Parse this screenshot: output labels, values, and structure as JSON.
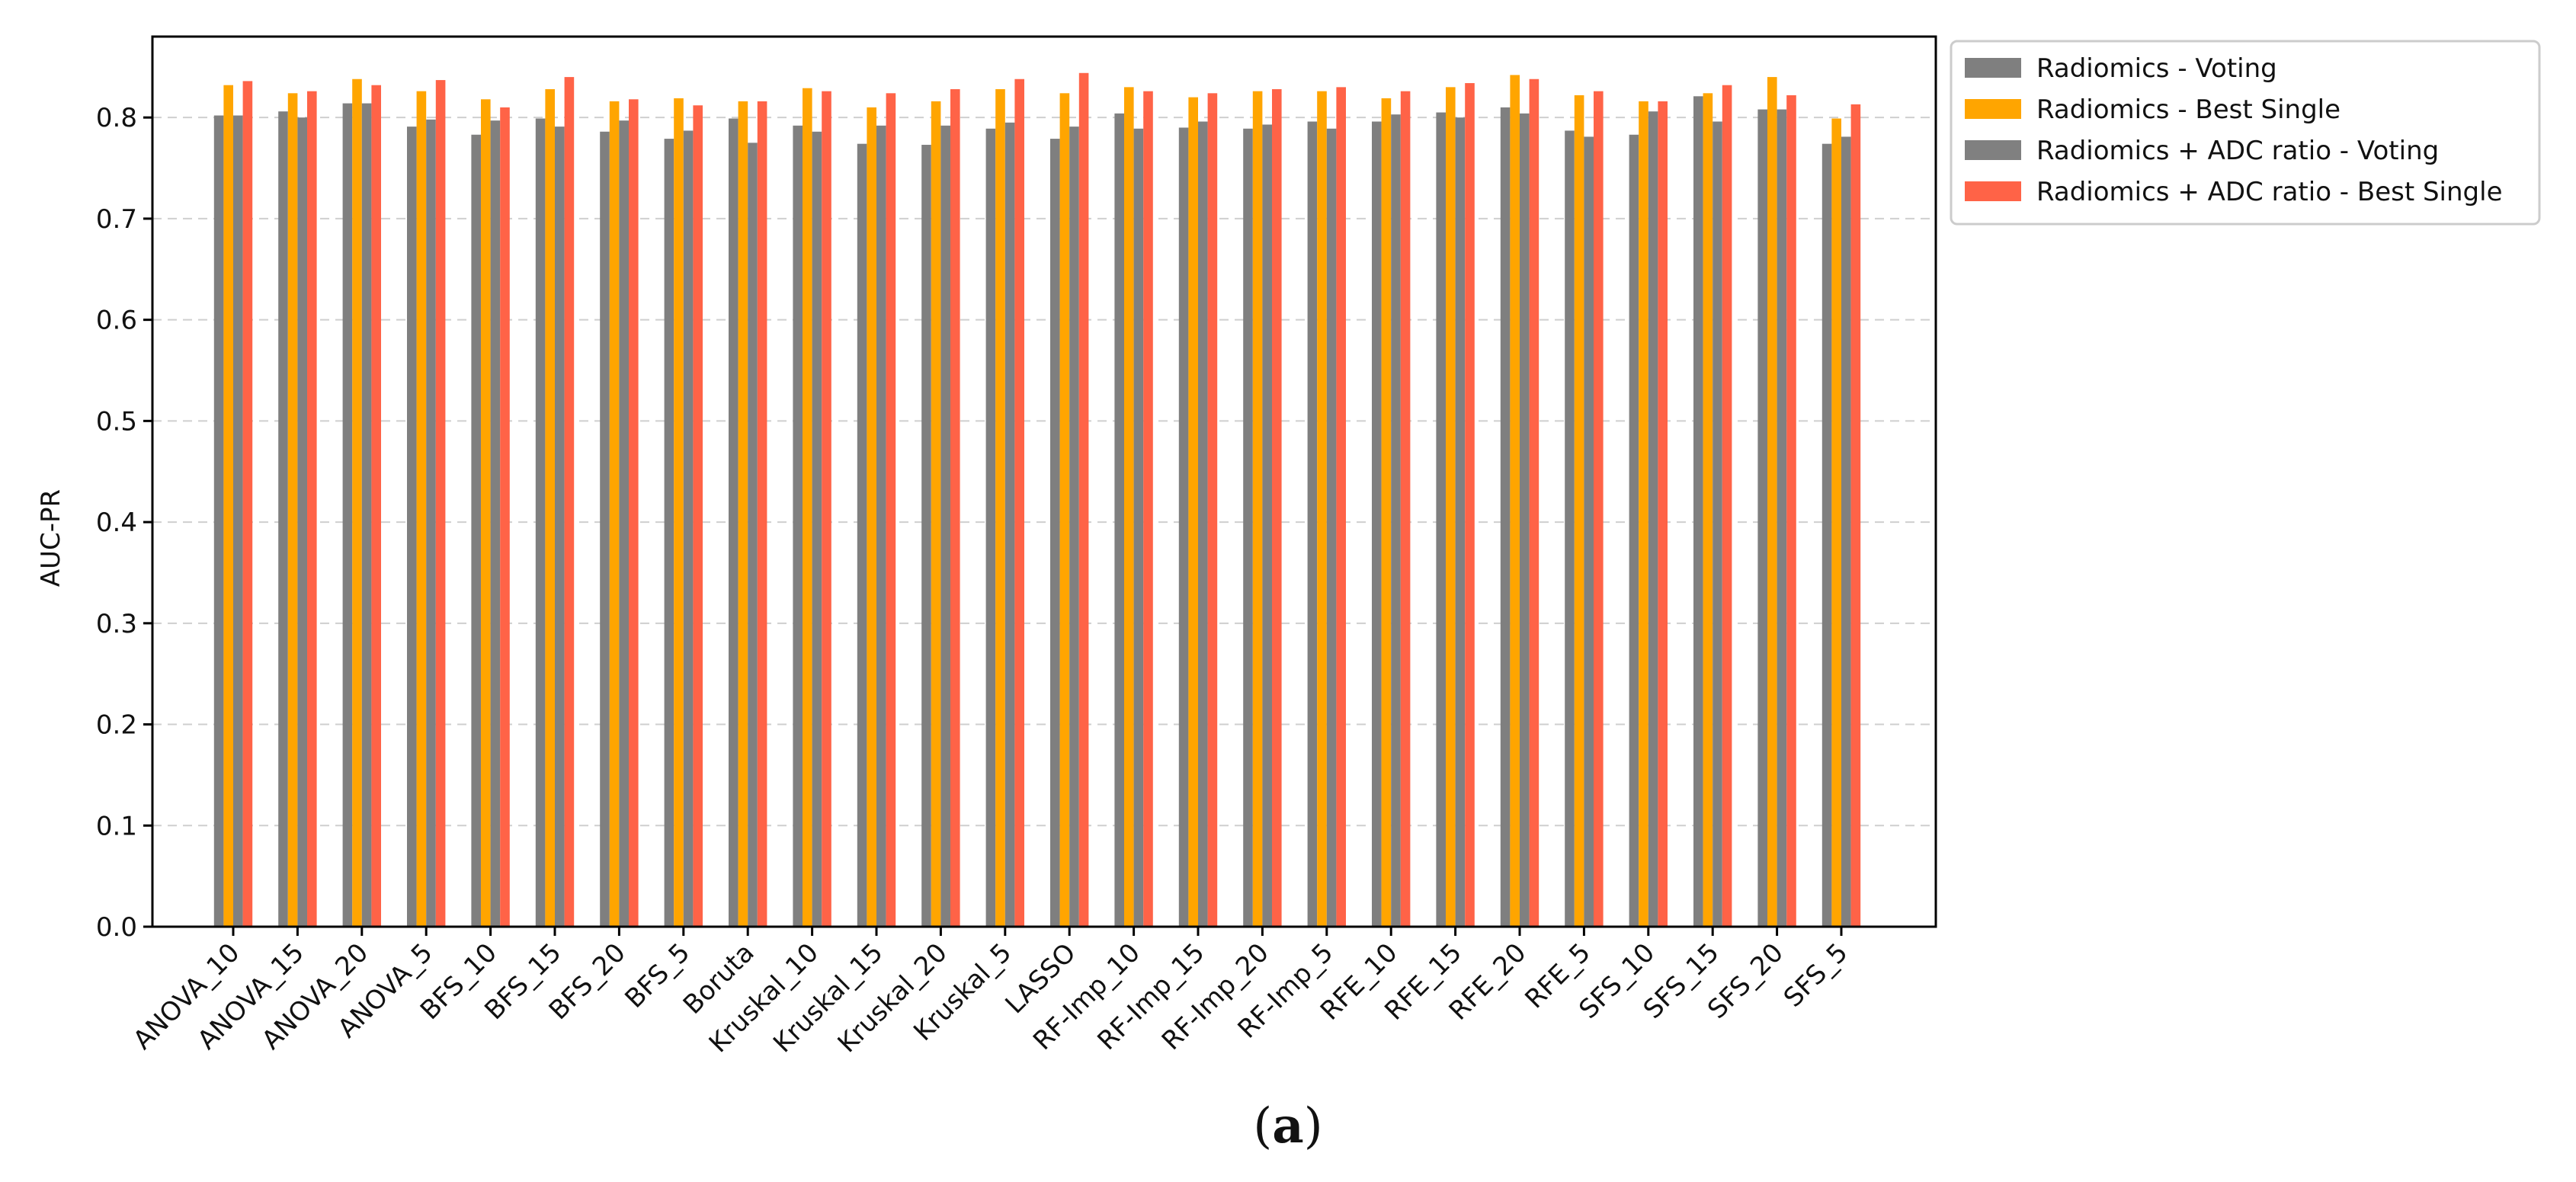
{
  "chart_data": {
    "type": "bar",
    "title": "",
    "xlabel": "",
    "ylabel": "AUC-PR",
    "ylim": [
      0,
      0.88
    ],
    "yticks": [
      "0.0",
      "0.1",
      "0.2",
      "0.3",
      "0.4",
      "0.5",
      "0.6",
      "0.7",
      "0.8"
    ],
    "grid": "horizontal dashed",
    "legend_position": "outside-top-right",
    "categories": [
      "ANOVA_10",
      "ANOVA_15",
      "ANOVA_20",
      "ANOVA_5",
      "BFS_10",
      "BFS_15",
      "BFS_20",
      "BFS_5",
      "Boruta",
      "Kruskal_10",
      "Kruskal_15",
      "Kruskal_20",
      "Kruskal_5",
      "LASSO",
      "RF-Imp_10",
      "RF-Imp_15",
      "RF-Imp_20",
      "RF-Imp_5",
      "RFE_10",
      "RFE_15",
      "RFE_20",
      "RFE_5",
      "SFS_10",
      "SFS_15",
      "SFS_20",
      "SFS_5"
    ],
    "series": [
      {
        "name": "Radiomics - Voting",
        "color": "#7f7f7f",
        "values": [
          0.802,
          0.806,
          0.814,
          0.791,
          0.783,
          0.799,
          0.786,
          0.779,
          0.799,
          0.792,
          0.774,
          0.773,
          0.789,
          0.779,
          0.804,
          0.79,
          0.789,
          0.796,
          0.796,
          0.805,
          0.81,
          0.787,
          0.783,
          0.821,
          0.808,
          0.774
        ]
      },
      {
        "name": "Radiomics - Best Single",
        "color": "#ffa500",
        "values": [
          0.832,
          0.824,
          0.838,
          0.826,
          0.818,
          0.828,
          0.816,
          0.819,
          0.816,
          0.829,
          0.81,
          0.816,
          0.828,
          0.824,
          0.83,
          0.82,
          0.826,
          0.826,
          0.819,
          0.83,
          0.842,
          0.822,
          0.816,
          0.824,
          0.84,
          0.799
        ]
      },
      {
        "name": "Radiomics + ADC ratio - Voting",
        "color": "#808080",
        "values": [
          0.802,
          0.8,
          0.814,
          0.798,
          0.797,
          0.791,
          0.797,
          0.787,
          0.775,
          0.786,
          0.792,
          0.792,
          0.795,
          0.791,
          0.789,
          0.796,
          0.793,
          0.789,
          0.803,
          0.8,
          0.804,
          0.781,
          0.806,
          0.796,
          0.808,
          0.781
        ]
      },
      {
        "name": "Radiomics + ADC ratio - Best Single",
        "color": "#ff6347",
        "values": [
          0.836,
          0.826,
          0.832,
          0.837,
          0.81,
          0.84,
          0.818,
          0.812,
          0.816,
          0.826,
          0.824,
          0.828,
          0.838,
          0.844,
          0.826,
          0.824,
          0.828,
          0.83,
          0.826,
          0.834,
          0.838,
          0.826,
          0.816,
          0.832,
          0.822,
          0.813
        ]
      }
    ]
  },
  "caption": {
    "open": "(",
    "letter": "a",
    "close": ")"
  }
}
